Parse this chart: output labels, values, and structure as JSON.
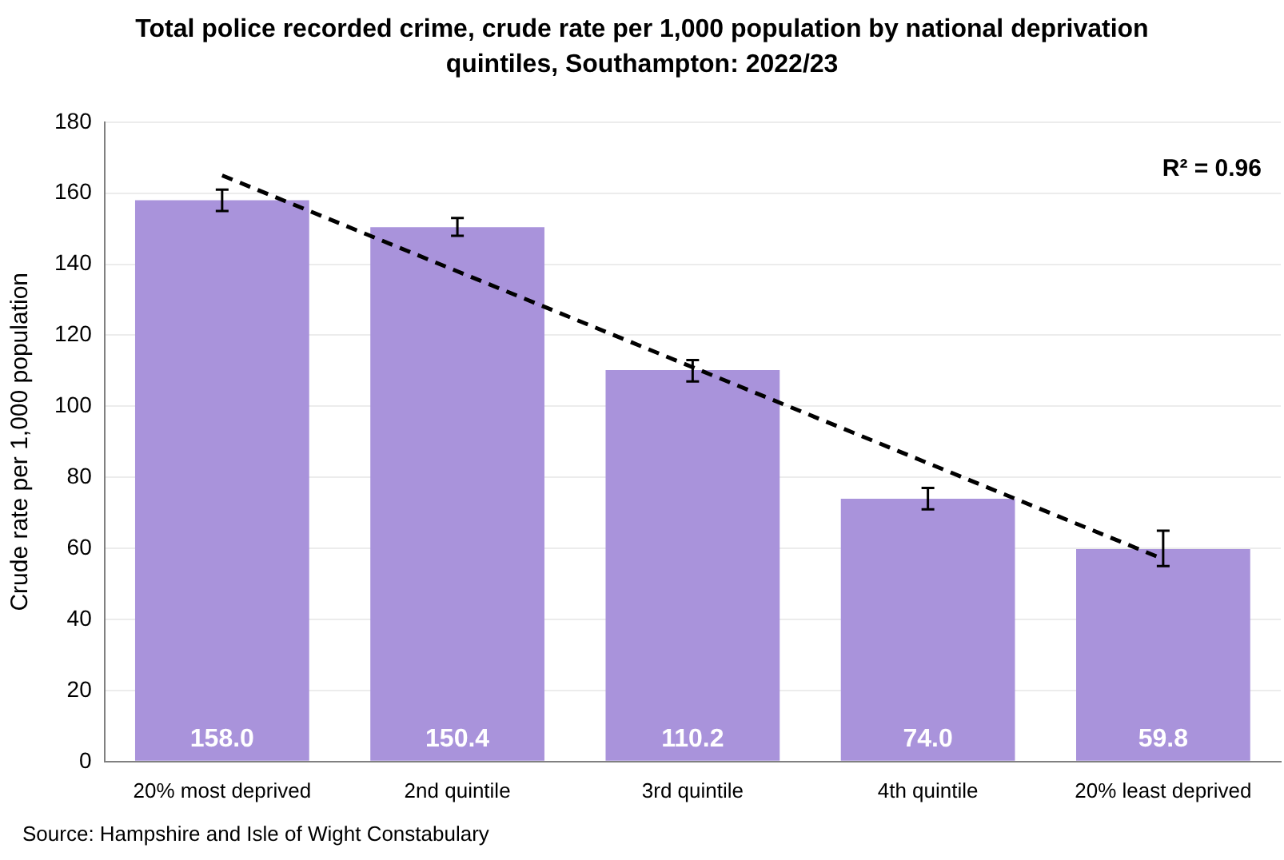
{
  "chart_data": {
    "type": "bar",
    "title": "Total police recorded crime, crude rate per 1,000 population by national deprivation quintiles, Southampton: 2022/23",
    "ylabel": "Crude rate per 1,000 population",
    "categories": [
      "20% most deprived",
      "2nd quintile",
      "3rd quintile",
      "4th quintile",
      "20% least deprived"
    ],
    "series": [
      {
        "color": "#a993db",
        "values": [
          158.0,
          150.4,
          110.2,
          74.0,
          59.8
        ],
        "errors": [
          [
            155,
            161
          ],
          [
            148,
            153
          ],
          [
            107,
            113
          ],
          [
            71,
            77
          ],
          [
            55,
            65
          ]
        ],
        "value_labels": [
          "158.0",
          "150.4",
          "110.2",
          "74.0",
          "59.8"
        ]
      },
      {
        "type": "line",
        "color": "#000000",
        "line_style": "dashed",
        "marker": "none",
        "x": [
          "20% most deprived",
          "2nd quintile",
          "3rd quintile",
          "4th quintile",
          "20% least deprived"
        ],
        "values": [
          165,
          138,
          111,
          84,
          57
        ]
      }
    ],
    "ylim": [
      0,
      180
    ],
    "yticks": [
      0,
      20,
      40,
      60,
      80,
      100,
      120,
      140,
      160,
      180
    ],
    "grid": "y",
    "legend": false,
    "annotations": [
      "R² = 0.96",
      "Source: Hampshire and Isle of Wight Constabulary"
    ]
  }
}
